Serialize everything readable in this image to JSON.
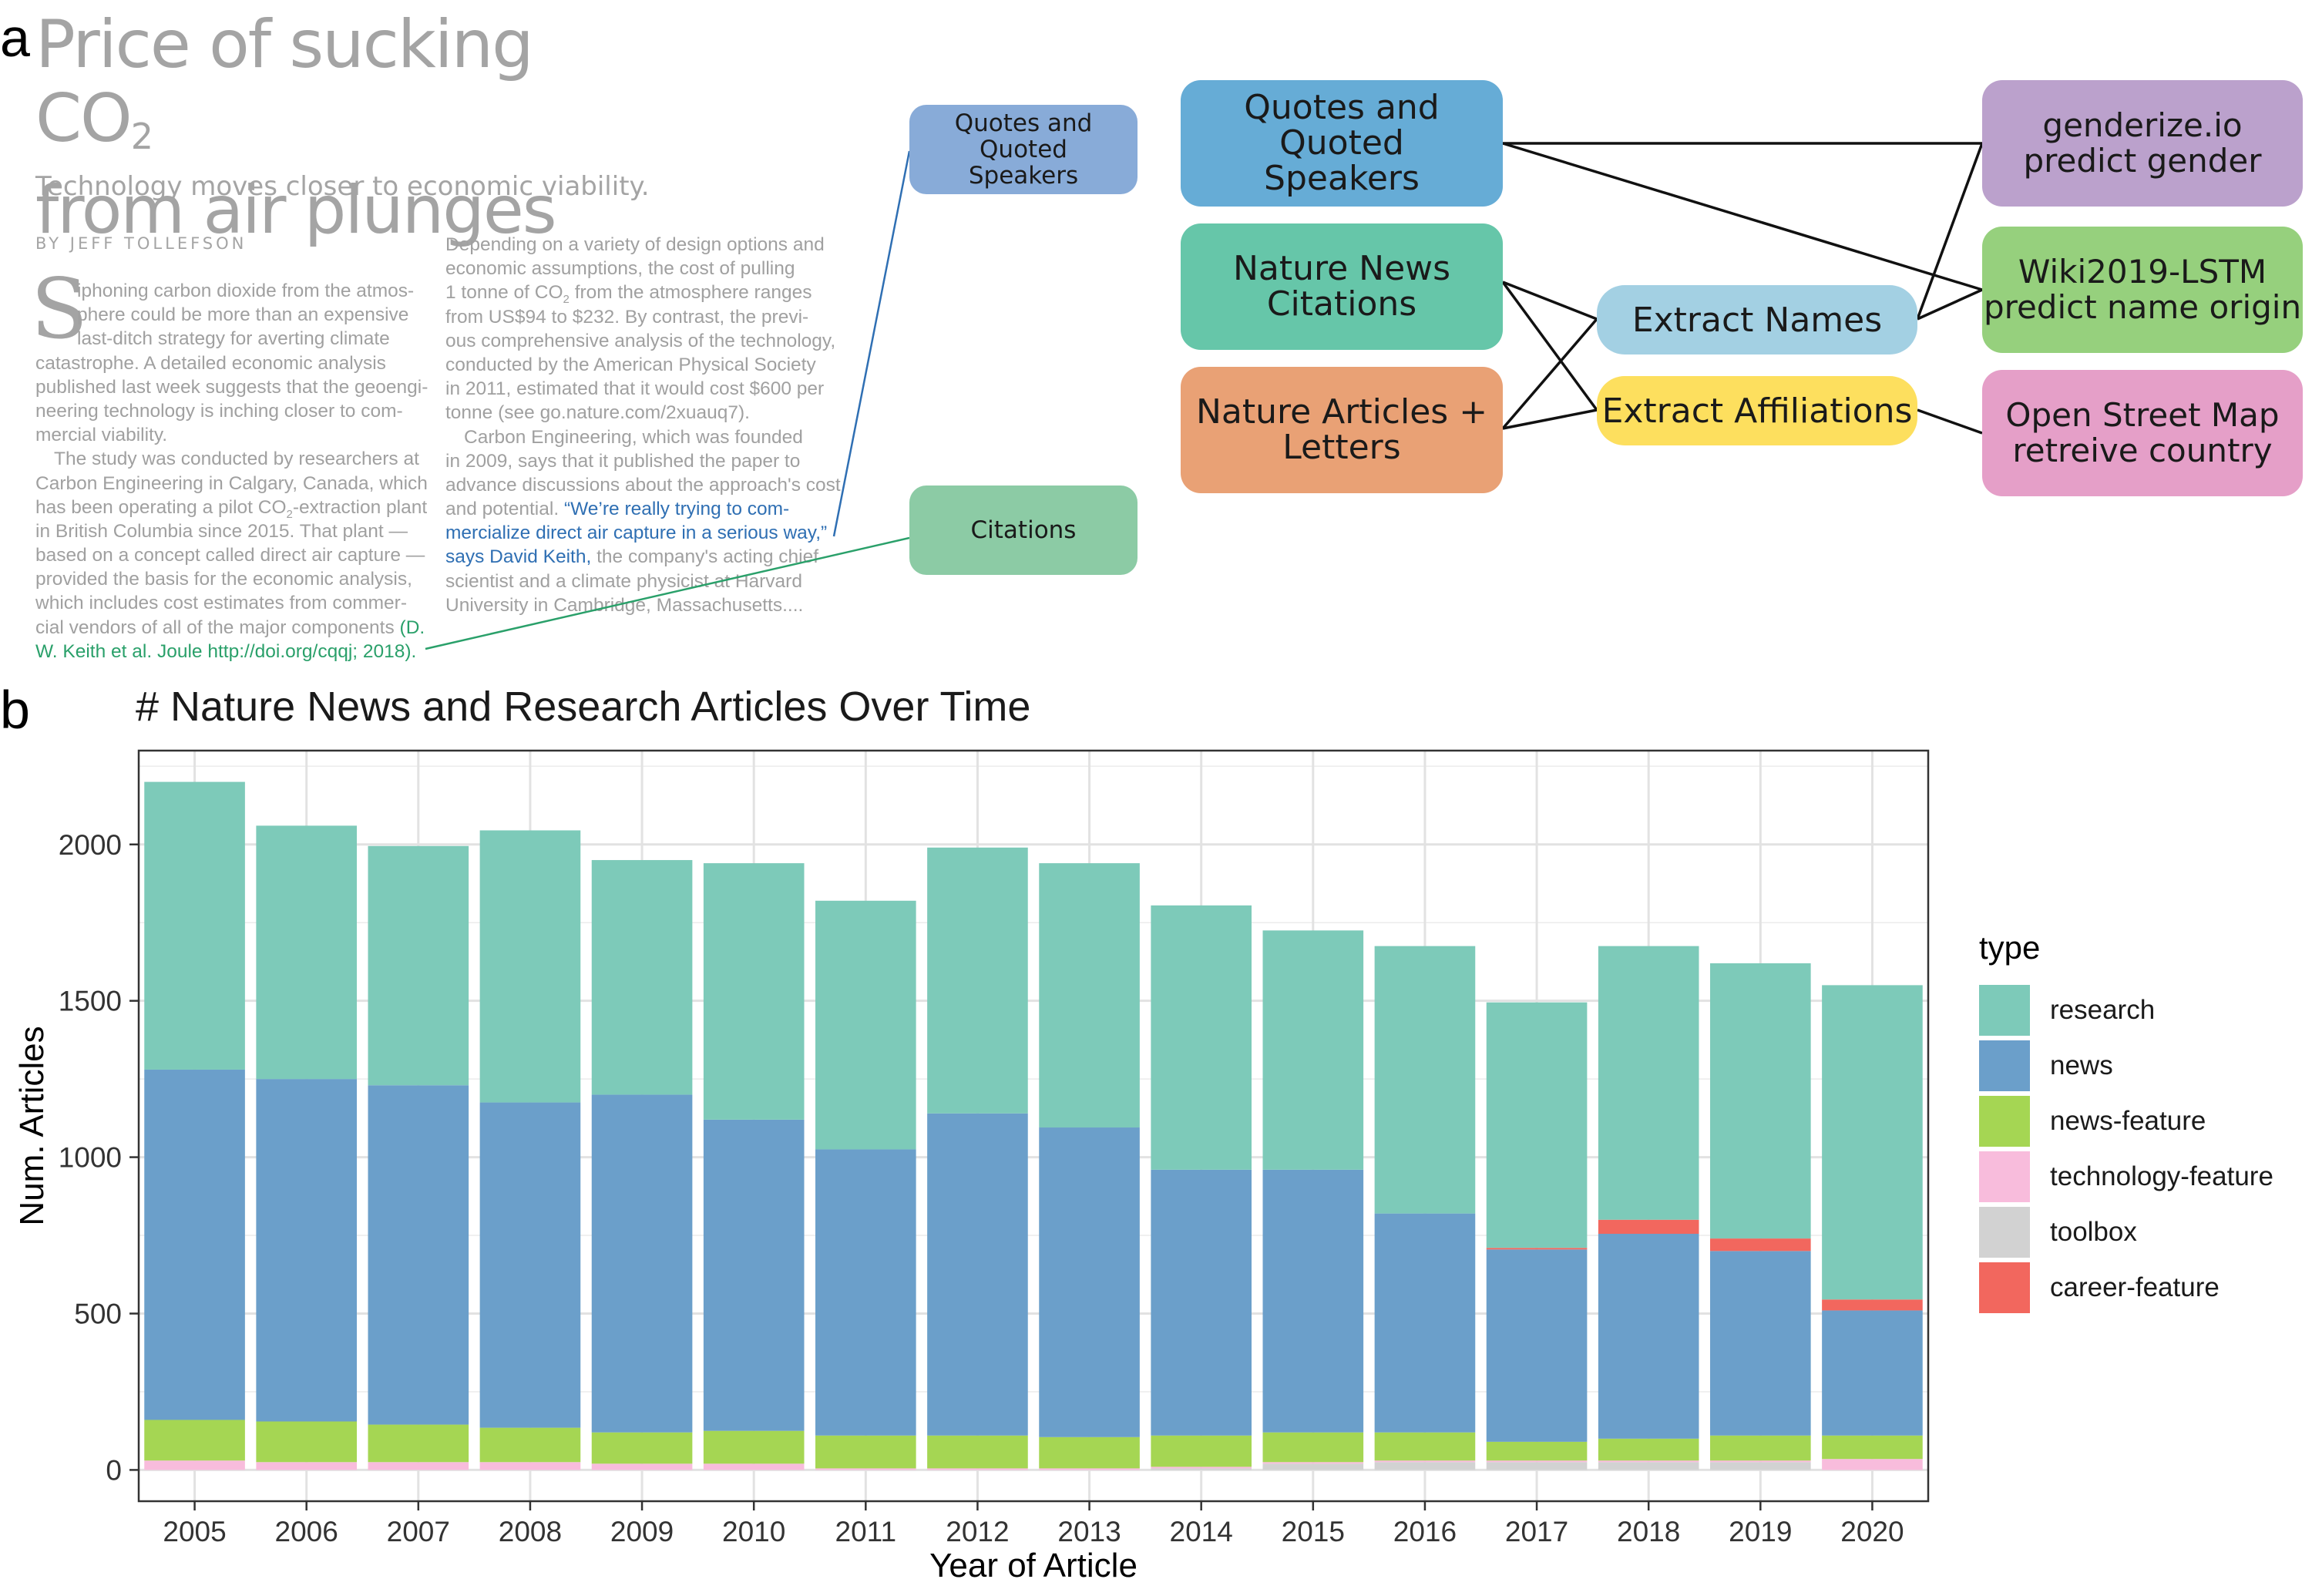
{
  "panels": {
    "a": "a",
    "b": "b"
  },
  "article": {
    "title_line1": "Price of sucking CO",
    "title_sub": "2",
    "title_line2": "from air plunges",
    "subtitle": "Technology moves closer to economic viability.",
    "byline": "BY JEFF TOLLEFSON",
    "dropcap": "S",
    "col1": {
      "l1": "iphoning carbon dioxide from the atmos-",
      "l2": "phere could be more than an expensive",
      "l3": "last-ditch strategy for averting climate",
      "l4": "catastrophe. A detailed economic analysis",
      "l5": "published last week suggests that the geoengi-",
      "l6": "neering technology is inching closer to com-",
      "l7": "mercial viability.",
      "l8": "The study was conducted by researchers at",
      "l9": "Carbon Engineering in Calgary, Canada, which",
      "l10": "has been operating a pilot CO",
      "l10_sub": "2",
      "l10_end": "-extraction plant",
      "l11": "in British Columbia since 2015. That plant —",
      "l12": "based on a concept called direct air capture —",
      "l13": "provided the basis for the economic analysis,",
      "l14": "which includes cost estimates from commer-",
      "l15": "cial vendors of all of the major components",
      "l15_cite": " (D.",
      "l16_cite": "W. Keith et al. Joule  http://doi.org/cqqj; 2018)."
    },
    "col2": {
      "l1": "Depending on a variety of design options and",
      "l2": "economic assumptions, the cost of pulling",
      "l3": "1 tonne of CO",
      "l3_sub": "2",
      "l3_end": " from the atmosphere ranges",
      "l4": "from US$94 to $232. By contrast, the previ-",
      "l5": "ous comprehensive analysis of the technology,",
      "l6": "conducted by the American Physical Society",
      "l7": "in 2011, estimated that it would cost $600 per",
      "l8": "tonne (see go.nature.com/2xuauq7).",
      "l9": "Carbon Engineering, which was founded",
      "l10": "in 2009, says that it published the paper to",
      "l11": "advance discussions about the approach's cost",
      "l12": "and potential. ",
      "l12_quote": "“We’re really trying to com-",
      "l13_quote": "mercialize direct air capture in a serious way,”",
      "l14_quote": "says David Keith,",
      "l14_end": " the company's acting chief",
      "l15": "scientist and a climate physicist at Harvard",
      "l16": "University in Cambridge, Massachusetts...."
    }
  },
  "pipeline": {
    "quotes_small": "Quotes and Quoted\nSpeakers",
    "citations_small": "Citations",
    "quotes": "Quotes and Quoted\nSpeakers",
    "news_citations": "Nature News\nCitations",
    "articles_letters": "Nature Articles +\nLetters",
    "extract_names": "Extract Names",
    "extract_affiliations": "Extract Affiliations",
    "genderize": "genderize.io\npredict gender",
    "wiki_lstm": "Wiki2019-LSTM\npredict name origin",
    "osm": "Open Street Map\nretreive country"
  },
  "colors": {
    "quotes_small": "#88abd8",
    "citations_small": "#8ccba5",
    "quotes": "#66acd6",
    "news_citations": "#66c6a9",
    "articles_letters": "#e9a175",
    "extract_names": "#a3d0e3",
    "extract_affiliations": "#fddf5e",
    "genderize": "#bba1cc",
    "wiki_lstm": "#96d07d",
    "osm": "#e59fc8",
    "research": "#7dcab9",
    "news": "#6b9fca",
    "news-feature": "#a5d653",
    "technology-feature": "#f8bcdc",
    "toolbox": "#d2d2d2",
    "career-feature": "#f2675e"
  },
  "chart_data": {
    "type": "bar",
    "stacked": true,
    "title": "# Nature News and Research Articles Over Time",
    "xlabel": "Year of Article",
    "ylabel": "Num. Articles",
    "ylim": [
      -100,
      2300
    ],
    "yticks": [
      0,
      500,
      1000,
      1500,
      2000
    ],
    "grid": true,
    "legend_title": "type",
    "legend_position": "right",
    "categories": [
      "2005",
      "2006",
      "2007",
      "2008",
      "2009",
      "2010",
      "2011",
      "2012",
      "2013",
      "2014",
      "2015",
      "2016",
      "2017",
      "2018",
      "2019",
      "2020"
    ],
    "series": [
      {
        "name": "toolbox",
        "values": [
          0,
          0,
          0,
          0,
          0,
          0,
          0,
          0,
          0,
          5,
          20,
          25,
          25,
          25,
          25,
          0
        ]
      },
      {
        "name": "technology-feature",
        "values": [
          30,
          25,
          25,
          25,
          20,
          20,
          5,
          5,
          5,
          5,
          5,
          5,
          5,
          5,
          5,
          35
        ]
      },
      {
        "name": "news-feature",
        "values": [
          130,
          130,
          120,
          110,
          100,
          105,
          105,
          105,
          100,
          100,
          95,
          90,
          60,
          70,
          80,
          75
        ]
      },
      {
        "name": "news",
        "values": [
          1120,
          1095,
          1085,
          1040,
          1080,
          995,
          915,
          1030,
          990,
          850,
          840,
          700,
          615,
          655,
          590,
          400
        ]
      },
      {
        "name": "career-feature",
        "values": [
          0,
          0,
          0,
          0,
          0,
          0,
          0,
          0,
          0,
          0,
          0,
          0,
          5,
          45,
          40,
          35
        ]
      },
      {
        "name": "research",
        "values": [
          920,
          810,
          765,
          870,
          750,
          820,
          795,
          850,
          845,
          845,
          765,
          855,
          785,
          875,
          880,
          1005
        ]
      }
    ],
    "legend_order": [
      "research",
      "news",
      "news-feature",
      "technology-feature",
      "toolbox",
      "career-feature"
    ]
  }
}
